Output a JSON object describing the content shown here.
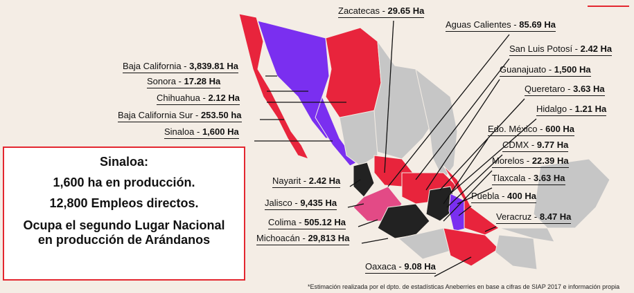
{
  "labels": [
    {
      "name": "Zacatecas -",
      "value": "29.65 Ha"
    },
    {
      "name": "Aguas Calientes -",
      "value": "85.69 Ha"
    },
    {
      "name": "San Luis Potosí -",
      "value": "2.42 Ha"
    },
    {
      "name": "Guanajuato -",
      "value": "1,500 Ha"
    },
    {
      "name": "Queretaro -",
      "value": "3.63 Ha"
    },
    {
      "name": "Hidalgo -",
      "value": "1.21 Ha"
    },
    {
      "name": "Edo. México -",
      "value": "600 Ha"
    },
    {
      "name": "CDMX -",
      "value": "9.77 Ha"
    },
    {
      "name": "Morelos -",
      "value": "22.39 Ha"
    },
    {
      "name": "Tlaxcala -",
      "value": "3.63 Ha"
    },
    {
      "name": "Puebla -",
      "value": "400 Ha"
    },
    {
      "name": "Veracruz -",
      "value": "8.47 Ha"
    },
    {
      "name": "Oaxaca -",
      "value": "9.08 Ha"
    },
    {
      "name": "Baja California -",
      "value": "3,839.81 Ha"
    },
    {
      "name": "Sonora -",
      "value": "17.28 Ha"
    },
    {
      "name": "Chihuahua -",
      "value": "2.12 Ha"
    },
    {
      "name": "Baja California Sur -",
      "value": "253.50 ha"
    },
    {
      "name": "Sinaloa -",
      "value": "1,600 Ha"
    },
    {
      "name": "Nayarit -",
      "value": "2.42 Ha"
    },
    {
      "name": "Jalisco -",
      "value": "9,435 Ha"
    },
    {
      "name": "Colima -",
      "value": "505.12 Ha"
    },
    {
      "name": "Michoacán -",
      "value": "29,813 Ha"
    }
  ],
  "summary": {
    "title": "Sinaloa:",
    "lines": [
      "1,600 ha en producción.",
      "12,800 Empleos directos.",
      "Ocupa el segundo Lugar Nacional",
      "en producción de Arándanos"
    ]
  },
  "footnote": "*Estimación realizada por el dpto. de estadísticas Aneberries en base a cifras de SIAP 2017 e información propia"
}
